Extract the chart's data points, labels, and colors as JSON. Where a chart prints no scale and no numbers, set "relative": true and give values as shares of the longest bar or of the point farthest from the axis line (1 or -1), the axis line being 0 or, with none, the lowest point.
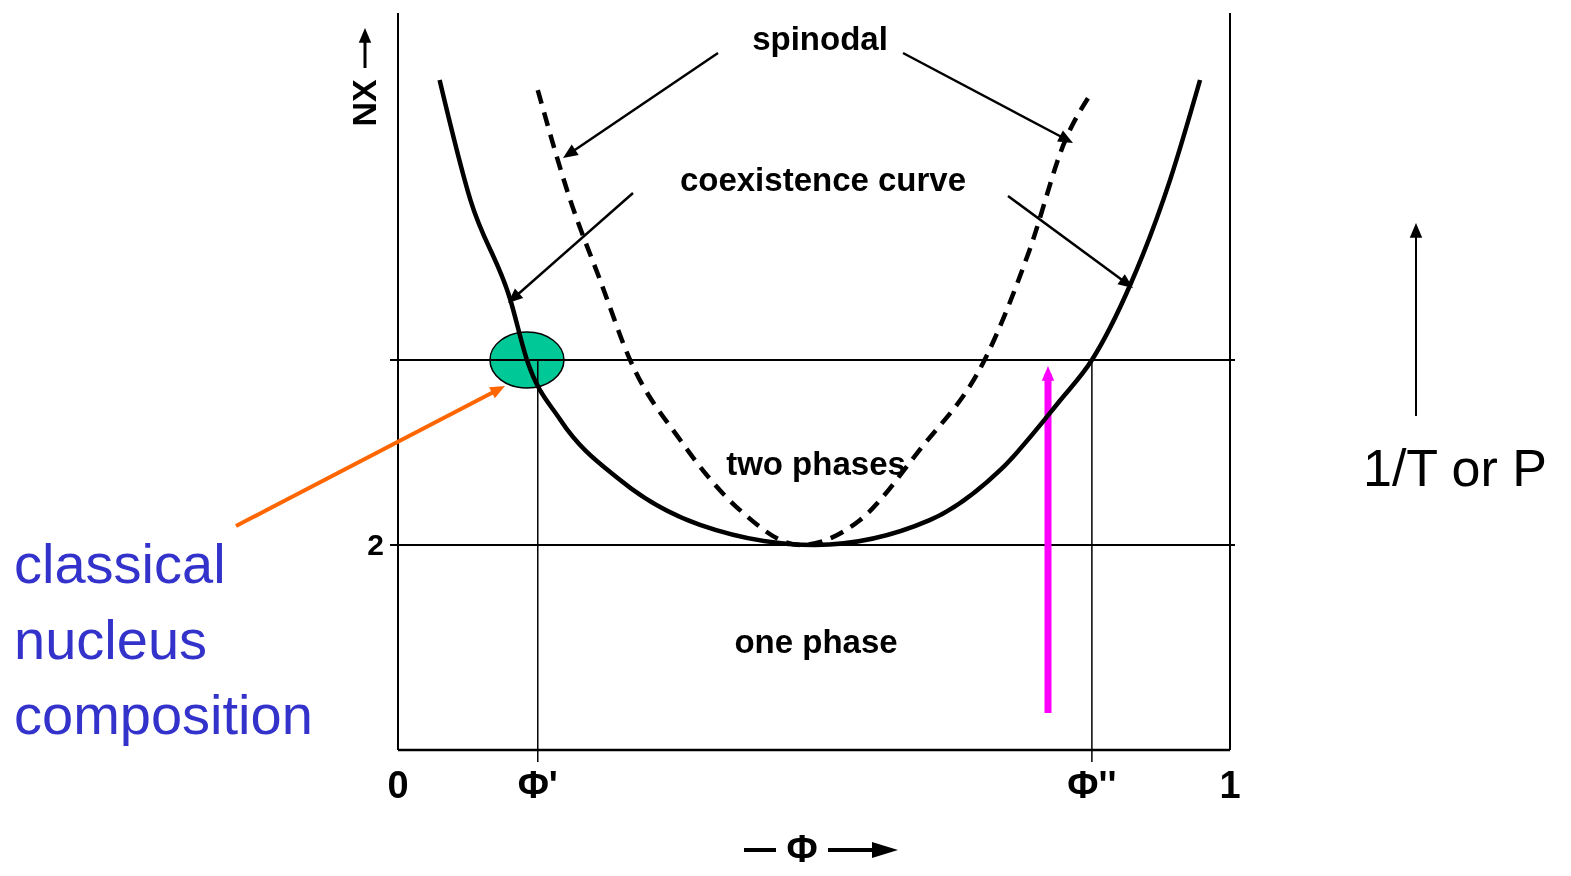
{
  "chart_data": {
    "type": "line",
    "relative": true,
    "xlabel": "Φ",
    "ylabel": "NX",
    "xlim": [
      0,
      1
    ],
    "xticks": [
      0,
      {
        "value": 0.168,
        "label": "Φ'"
      },
      {
        "value": 0.834,
        "label": "Φ''"
      },
      1
    ],
    "grid": false,
    "marker": "none",
    "series": [
      {
        "color": "#000000",
        "line_style": "solid",
        "x": [
          0.05,
          0.087,
          0.135,
          0.155,
          0.195,
          0.267,
          0.363,
          0.501,
          0.639,
          0.724,
          0.796,
          0.834,
          0.88,
          0.928,
          0.964
        ],
        "values": [
          1.0,
          0.821,
          0.672,
          0.582,
          0.493,
          0.403,
          0.336,
          0.306,
          0.343,
          0.418,
          0.522,
          0.582,
          0.694,
          0.851,
          1.0
        ]
      },
      {
        "color": "#000000",
        "line_style": "dashed",
        "x": [
          0.168,
          0.207,
          0.243,
          0.279,
          0.339,
          0.411,
          0.483,
          0.555,
          0.627,
          0.705,
          0.759,
          0.802,
          0.832
        ],
        "values": [
          0.985,
          0.821,
          0.701,
          0.582,
          0.463,
          0.358,
          0.306,
          0.343,
          0.448,
          0.582,
          0.746,
          0.91,
          0.978
        ]
      }
    ],
    "ref_lines": [
      {
        "axis": "y",
        "value": 0.306,
        "label": null
      },
      {
        "axis": "y",
        "value": 0.582,
        "label": null
      },
      {
        "axis": "x",
        "value": 0.168,
        "label": null
      },
      {
        "axis": "x",
        "value": 0.834,
        "label": null
      }
    ],
    "annotations": [
      "2",
      "spinodal",
      "coexistence curve",
      "two phases",
      "one phase",
      "classical nucleus composition",
      "1/T or P"
    ]
  }
}
